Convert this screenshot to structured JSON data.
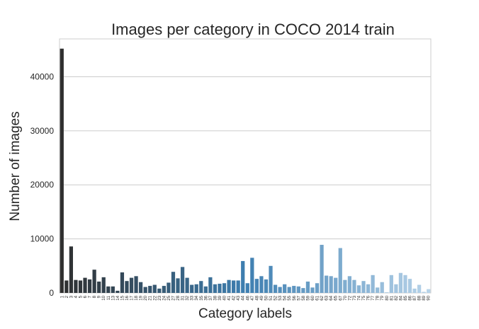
{
  "chart_data": {
    "type": "bar",
    "title": "Images per category in COCO 2014 train",
    "xlabel": "Category labels",
    "ylabel": "Number of images",
    "ylim": [
      0,
      47000
    ],
    "yticks": [
      0,
      10000,
      20000,
      30000,
      40000
    ],
    "ytick_labels": [
      "0",
      "10000",
      "20000",
      "30000",
      "40000"
    ],
    "grid": "horizontal",
    "palette": {
      "start": "#2f2f2f",
      "mid": "#3e7fb1",
      "end": "#b7d3e9"
    },
    "categories": [
      "1",
      "2",
      "3",
      "4",
      "5",
      "6",
      "7",
      "8",
      "9",
      "10",
      "11",
      "13",
      "14",
      "15",
      "16",
      "17",
      "18",
      "19",
      "20",
      "21",
      "22",
      "23",
      "24",
      "25",
      "27",
      "28",
      "31",
      "32",
      "33",
      "34",
      "35",
      "36",
      "37",
      "38",
      "39",
      "40",
      "41",
      "42",
      "43",
      "44",
      "46",
      "47",
      "48",
      "49",
      "50",
      "51",
      "52",
      "53",
      "54",
      "55",
      "56",
      "57",
      "58",
      "59",
      "60",
      "61",
      "62",
      "63",
      "64",
      "65",
      "67",
      "70",
      "72",
      "73",
      "74",
      "75",
      "76",
      "77",
      "78",
      "79",
      "80",
      "81",
      "82",
      "84",
      "85",
      "86",
      "87",
      "88",
      "89",
      "90"
    ],
    "values": [
      45200,
      2300,
      8600,
      2400,
      2300,
      2800,
      2500,
      4300,
      2100,
      2900,
      1200,
      1200,
      400,
      3800,
      2200,
      2800,
      3100,
      2000,
      1100,
      1300,
      1500,
      800,
      1300,
      1900,
      3900,
      2700,
      4800,
      2800,
      1500,
      1600,
      2200,
      1200,
      2900,
      1600,
      1700,
      1800,
      2400,
      2300,
      2300,
      5900,
      1800,
      6500,
      2600,
      3100,
      2500,
      5000,
      1500,
      1100,
      1600,
      1100,
      1300,
      1200,
      900,
      2100,
      1000,
      1800,
      8900,
      3200,
      3100,
      2800,
      8300,
      2400,
      3100,
      2400,
      1400,
      2200,
      1600,
      3300,
      1000,
      2000,
      100,
      3300,
      1600,
      3700,
      3300,
      2600,
      800,
      1500,
      200,
      700
    ]
  }
}
